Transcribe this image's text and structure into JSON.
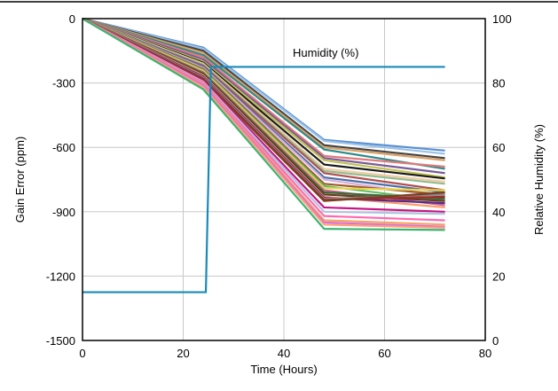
{
  "chart_data": {
    "type": "line",
    "title": "",
    "xlabel": "Time (Hours)",
    "ylabel_left": "Gain Error (ppm)",
    "ylabel_right": "Relative Humidity (%)",
    "xlim": [
      0,
      80
    ],
    "ylim_left": [
      -1500,
      0
    ],
    "ylim_right": [
      0,
      100
    ],
    "x_ticks": [
      0,
      20,
      40,
      60,
      80
    ],
    "y_left_ticks": [
      0,
      -300,
      -600,
      -900,
      -1200,
      -1500
    ],
    "y_right_ticks": [
      100,
      80,
      60,
      40,
      20,
      0
    ],
    "grid": true,
    "annotation": "Humidity (%)",
    "humidity_series": {
      "name": "Humidity (%)",
      "color": "#1a8ab8",
      "axis": "right",
      "x": [
        0,
        24.5,
        25.5,
        72
      ],
      "y": [
        15,
        15,
        85,
        85
      ]
    },
    "gain_error_x": [
      0,
      24,
      48,
      72
    ],
    "gain_error_series": [
      {
        "color": "#5b8fd4",
        "values": [
          0,
          -135,
          -565,
          -615
        ]
      },
      {
        "color": "#9ac3e8",
        "values": [
          0,
          -140,
          -570,
          -630
        ]
      },
      {
        "color": "#444444",
        "values": [
          0,
          -150,
          -590,
          -650
        ]
      },
      {
        "color": "#d9a066",
        "values": [
          0,
          -160,
          -600,
          -660
        ]
      },
      {
        "color": "#2e8b8b",
        "values": [
          0,
          -170,
          -610,
          -700
        ]
      },
      {
        "color": "#e07a7a",
        "values": [
          0,
          -180,
          -640,
          -690
        ]
      },
      {
        "color": "#7a5a9a",
        "values": [
          0,
          -190,
          -650,
          -720
        ]
      },
      {
        "color": "#c0c050",
        "values": [
          0,
          -200,
          -660,
          -740
        ]
      },
      {
        "color": "#1a1a1a",
        "values": [
          0,
          -205,
          -680,
          -745
        ]
      },
      {
        "color": "#f2c9a0",
        "values": [
          0,
          -210,
          -700,
          -760
        ]
      },
      {
        "color": "#8fbc8f",
        "values": [
          0,
          -215,
          -710,
          -770
        ]
      },
      {
        "color": "#b05050",
        "values": [
          0,
          -220,
          -720,
          -800
        ]
      },
      {
        "color": "#4b6fa8",
        "values": [
          0,
          -225,
          -740,
          -810
        ]
      },
      {
        "color": "#d8b0d8",
        "values": [
          0,
          -230,
          -750,
          -830
        ]
      },
      {
        "color": "#a05a2c",
        "values": [
          0,
          -235,
          -770,
          -820
        ]
      },
      {
        "color": "#66bb66",
        "values": [
          0,
          -240,
          -780,
          -850
        ]
      },
      {
        "color": "#e8d44d",
        "values": [
          0,
          -245,
          -790,
          -800
        ]
      },
      {
        "color": "#cc6699",
        "values": [
          0,
          -250,
          -800,
          -870
        ]
      },
      {
        "color": "#3a6a3a",
        "values": [
          0,
          -255,
          -810,
          -840
        ]
      },
      {
        "color": "#6a3a1a",
        "values": [
          0,
          -260,
          -820,
          -850
        ]
      },
      {
        "color": "#ff9966",
        "values": [
          0,
          -265,
          -830,
          -880
        ]
      },
      {
        "color": "#5a2a8a",
        "values": [
          0,
          -270,
          -835,
          -860
        ]
      },
      {
        "color": "#8a8a8a",
        "values": [
          0,
          -275,
          -840,
          -820
        ]
      },
      {
        "color": "#a52a2a",
        "values": [
          0,
          -280,
          -845,
          -830
        ]
      },
      {
        "color": "#7b3f1f",
        "values": [
          0,
          -285,
          -850,
          -810
        ]
      },
      {
        "color": "#c71585",
        "values": [
          0,
          -290,
          -880,
          -900
        ]
      },
      {
        "color": "#b0c4de",
        "values": [
          0,
          -295,
          -900,
          -910
        ]
      },
      {
        "color": "#ff69b4",
        "values": [
          0,
          -300,
          -920,
          -940
        ]
      },
      {
        "color": "#f4a460",
        "values": [
          0,
          -305,
          -940,
          -960
        ]
      },
      {
        "color": "#da70d6",
        "values": [
          0,
          -310,
          -950,
          -970
        ]
      },
      {
        "color": "#ffa07a",
        "values": [
          0,
          -320,
          -960,
          -975
        ]
      },
      {
        "color": "#3cb371",
        "values": [
          0,
          -330,
          -980,
          -985
        ]
      }
    ]
  }
}
